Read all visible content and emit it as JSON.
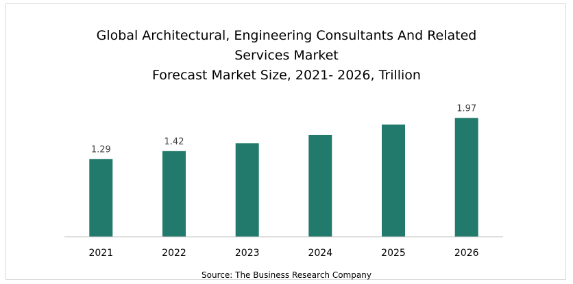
{
  "colors": {
    "bar": "#217a6b",
    "axis": "#bfbfbf",
    "text": "#000000",
    "label": "#404040"
  },
  "chart_data": {
    "type": "bar",
    "title": [
      "Global Architectural, Engineering Consultants And Related",
      "Services Market",
      "Forecast Market Size, 2021- 2026, Trillion"
    ],
    "categories": [
      "2021",
      "2022",
      "2023",
      "2024",
      "2025",
      "2026"
    ],
    "values": [
      1.29,
      1.42,
      1.55,
      1.69,
      1.86,
      1.97
    ],
    "data_labels": [
      "1.29",
      "1.42",
      "",
      "",
      "",
      "1.97"
    ],
    "ylim": [
      0,
      2.45
    ],
    "grid": false,
    "legend": "none",
    "xlabel": "",
    "ylabel": ""
  },
  "source": "Source: The Business Research Company"
}
